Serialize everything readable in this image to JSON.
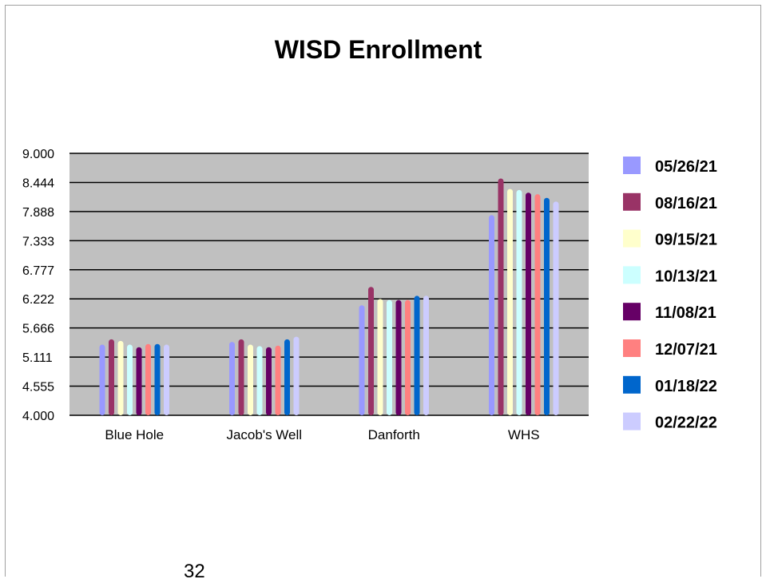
{
  "chart_data": {
    "type": "bar",
    "title": "WISD Enrollment",
    "xlabel": "",
    "ylabel": "",
    "ylim": [
      4.0,
      9.0
    ],
    "yticks": [
      "9.000",
      "8.444",
      "7.888",
      "7.333",
      "6.777",
      "6.222",
      "5.666",
      "5.111",
      "4.555",
      "4.000"
    ],
    "grid": true,
    "legend_position": "right",
    "categories": [
      "Blue Hole",
      "Jacob's Well",
      "Danforth",
      "WHS"
    ],
    "series": [
      {
        "name": "05/26/21",
        "color": "#9999ff",
        "values": [
          5.35,
          5.4,
          6.1,
          7.82
        ]
      },
      {
        "name": "08/16/21",
        "color": "#993366",
        "values": [
          5.45,
          5.45,
          6.45,
          8.52
        ]
      },
      {
        "name": "09/15/21",
        "color": "#ffffcc",
        "values": [
          5.42,
          5.35,
          6.22,
          8.32
        ]
      },
      {
        "name": "10/13/21",
        "color": "#ccffff",
        "values": [
          5.35,
          5.32,
          6.2,
          8.3
        ]
      },
      {
        "name": "11/08/21",
        "color": "#660066",
        "values": [
          5.3,
          5.3,
          6.2,
          8.25
        ]
      },
      {
        "name": "12/07/21",
        "color": "#ff8080",
        "values": [
          5.36,
          5.33,
          6.2,
          8.22
        ]
      },
      {
        "name": "01/18/22",
        "color": "#0066cc",
        "values": [
          5.36,
          5.45,
          6.28,
          8.15
        ]
      },
      {
        "name": "02/22/22",
        "color": "#ccccff",
        "values": [
          5.35,
          5.5,
          6.28,
          8.08
        ]
      }
    ]
  },
  "page": {
    "number": "32"
  },
  "colors": {
    "plot_background": "#c0c0c0",
    "gridline": "#000000"
  }
}
